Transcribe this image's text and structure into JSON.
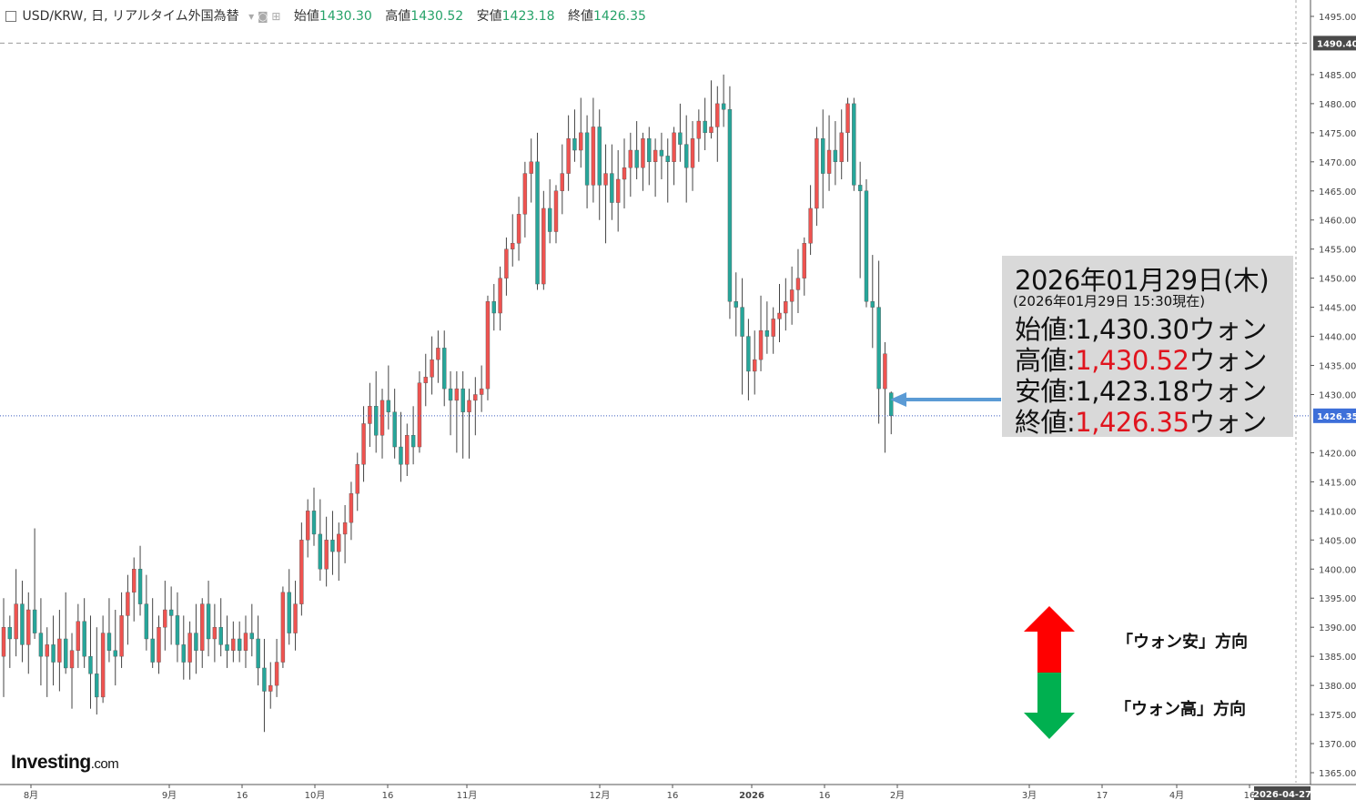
{
  "header": {
    "symbol": "USD/KRW, 日, リアルタイム外国為替",
    "open_label": "始値",
    "open": "1430.30",
    "high_label": "高値",
    "high": "1430.52",
    "low_label": "安値",
    "low": "1423.18",
    "close_label": "終値",
    "close": "1426.35"
  },
  "info_box": {
    "date": "2026年01月29日(木)",
    "as_of": "(2026年01月29日 15:30現在)",
    "open": "始値:1,430.30ウォン",
    "high_prefix": "高値:",
    "high_value": "1,430.52",
    "high_suffix": "ウォン",
    "low": "安値:1,423.18ウォン",
    "close_prefix": "終値:",
    "close_value": "1,426.35",
    "close_suffix": "ウォン"
  },
  "legend": {
    "up": "「ウォン安」方向",
    "down": "「ウォン高」方向",
    "up_color": "#ff0000",
    "down_color": "#00b050"
  },
  "logo": {
    "name": "Investing",
    "suffix": ".com"
  },
  "colors": {
    "up": "#ef5350",
    "down": "#26a69a",
    "wick": "#444444",
    "arrow": "#5b9bd5"
  },
  "chart_data": {
    "type": "candlestick",
    "title": "USD/KRW, 日, リアルタイム外国為替",
    "y_range": [
      1364,
      1498
    ],
    "y_ticks": [
      "1495.00",
      "1485.00",
      "1480.00",
      "1475.00",
      "1470.00",
      "1465.00",
      "1460.00",
      "1455.00",
      "1450.00",
      "1445.00",
      "1440.00",
      "1435.00",
      "1430.00",
      "1420.00",
      "1415.00",
      "1410.00",
      "1405.00",
      "1400.00",
      "1395.00",
      "1390.00",
      "1385.00",
      "1380.00",
      "1375.00",
      "1370.00",
      "1365.00"
    ],
    "price_markers": [
      {
        "label": "1490.40",
        "value": 1490.4,
        "style": "dashed"
      },
      {
        "label": "1426.35",
        "value": 1426.35,
        "style": "dotted"
      }
    ],
    "x_ticks": [
      "8月",
      "9月",
      "16",
      "10月",
      "16",
      "11月",
      "12月",
      "16",
      "2026",
      "16",
      "2月",
      "3月",
      "17",
      "4月",
      "16"
    ],
    "x_cursor_label": "2026-04-27",
    "candles": [
      {
        "o": 1385,
        "h": 1395,
        "l": 1378,
        "c": 1390
      },
      {
        "o": 1390,
        "h": 1392,
        "l": 1383,
        "c": 1388
      },
      {
        "o": 1388,
        "h": 1400,
        "l": 1385,
        "c": 1394
      },
      {
        "o": 1394,
        "h": 1398,
        "l": 1384,
        "c": 1387
      },
      {
        "o": 1387,
        "h": 1396,
        "l": 1382,
        "c": 1393
      },
      {
        "o": 1393,
        "h": 1407,
        "l": 1388,
        "c": 1389
      },
      {
        "o": 1389,
        "h": 1395,
        "l": 1380,
        "c": 1385
      },
      {
        "o": 1385,
        "h": 1390,
        "l": 1378,
        "c": 1387
      },
      {
        "o": 1387,
        "h": 1392,
        "l": 1380,
        "c": 1384
      },
      {
        "o": 1384,
        "h": 1393,
        "l": 1379,
        "c": 1388
      },
      {
        "o": 1388,
        "h": 1396,
        "l": 1382,
        "c": 1383
      },
      {
        "o": 1383,
        "h": 1389,
        "l": 1376,
        "c": 1386
      },
      {
        "o": 1386,
        "h": 1394,
        "l": 1383,
        "c": 1391
      },
      {
        "o": 1391,
        "h": 1395,
        "l": 1383,
        "c": 1385
      },
      {
        "o": 1385,
        "h": 1392,
        "l": 1376,
        "c": 1382
      },
      {
        "o": 1382,
        "h": 1390,
        "l": 1375,
        "c": 1378
      },
      {
        "o": 1378,
        "h": 1392,
        "l": 1377,
        "c": 1389
      },
      {
        "o": 1389,
        "h": 1395,
        "l": 1384,
        "c": 1386
      },
      {
        "o": 1386,
        "h": 1393,
        "l": 1380,
        "c": 1385
      },
      {
        "o": 1385,
        "h": 1396,
        "l": 1383,
        "c": 1392
      },
      {
        "o": 1392,
        "h": 1399,
        "l": 1387,
        "c": 1396
      },
      {
        "o": 1396,
        "h": 1402,
        "l": 1391,
        "c": 1400
      },
      {
        "o": 1400,
        "h": 1404,
        "l": 1392,
        "c": 1394
      },
      {
        "o": 1394,
        "h": 1399,
        "l": 1386,
        "c": 1388
      },
      {
        "o": 1388,
        "h": 1395,
        "l": 1383,
        "c": 1384
      },
      {
        "o": 1384,
        "h": 1392,
        "l": 1382,
        "c": 1390
      },
      {
        "o": 1390,
        "h": 1398,
        "l": 1386,
        "c": 1393
      },
      {
        "o": 1393,
        "h": 1397,
        "l": 1387,
        "c": 1392
      },
      {
        "o": 1392,
        "h": 1396,
        "l": 1384,
        "c": 1387
      },
      {
        "o": 1387,
        "h": 1392,
        "l": 1381,
        "c": 1384
      },
      {
        "o": 1384,
        "h": 1391,
        "l": 1381,
        "c": 1389
      },
      {
        "o": 1389,
        "h": 1394,
        "l": 1382,
        "c": 1386
      },
      {
        "o": 1386,
        "h": 1395,
        "l": 1383,
        "c": 1394
      },
      {
        "o": 1394,
        "h": 1398,
        "l": 1385,
        "c": 1388
      },
      {
        "o": 1388,
        "h": 1394,
        "l": 1384,
        "c": 1390
      },
      {
        "o": 1390,
        "h": 1395,
        "l": 1385,
        "c": 1387
      },
      {
        "o": 1387,
        "h": 1392,
        "l": 1383,
        "c": 1386
      },
      {
        "o": 1386,
        "h": 1391,
        "l": 1384,
        "c": 1388
      },
      {
        "o": 1388,
        "h": 1391,
        "l": 1384,
        "c": 1386
      },
      {
        "o": 1386,
        "h": 1392,
        "l": 1383,
        "c": 1389
      },
      {
        "o": 1389,
        "h": 1394,
        "l": 1385,
        "c": 1388
      },
      {
        "o": 1388,
        "h": 1392,
        "l": 1380,
        "c": 1383
      },
      {
        "o": 1383,
        "h": 1388,
        "l": 1372,
        "c": 1379
      },
      {
        "o": 1379,
        "h": 1384,
        "l": 1376,
        "c": 1380
      },
      {
        "o": 1380,
        "h": 1388,
        "l": 1378,
        "c": 1384
      },
      {
        "o": 1384,
        "h": 1397,
        "l": 1383,
        "c": 1396
      },
      {
        "o": 1396,
        "h": 1400,
        "l": 1387,
        "c": 1389
      },
      {
        "o": 1389,
        "h": 1398,
        "l": 1386,
        "c": 1394
      },
      {
        "o": 1394,
        "h": 1408,
        "l": 1392,
        "c": 1405
      },
      {
        "o": 1405,
        "h": 1412,
        "l": 1402,
        "c": 1410
      },
      {
        "o": 1410,
        "h": 1414,
        "l": 1404,
        "c": 1406
      },
      {
        "o": 1406,
        "h": 1412,
        "l": 1398,
        "c": 1400
      },
      {
        "o": 1400,
        "h": 1409,
        "l": 1397,
        "c": 1405
      },
      {
        "o": 1405,
        "h": 1410,
        "l": 1399,
        "c": 1403
      },
      {
        "o": 1403,
        "h": 1408,
        "l": 1398,
        "c": 1406
      },
      {
        "o": 1406,
        "h": 1411,
        "l": 1401,
        "c": 1408
      },
      {
        "o": 1408,
        "h": 1415,
        "l": 1405,
        "c": 1413
      },
      {
        "o": 1413,
        "h": 1420,
        "l": 1410,
        "c": 1418
      },
      {
        "o": 1418,
        "h": 1428,
        "l": 1415,
        "c": 1425
      },
      {
        "o": 1425,
        "h": 1432,
        "l": 1421,
        "c": 1428
      },
      {
        "o": 1428,
        "h": 1434,
        "l": 1420,
        "c": 1423
      },
      {
        "o": 1423,
        "h": 1431,
        "l": 1419,
        "c": 1429
      },
      {
        "o": 1429,
        "h": 1435,
        "l": 1424,
        "c": 1427
      },
      {
        "o": 1427,
        "h": 1431,
        "l": 1419,
        "c": 1421
      },
      {
        "o": 1421,
        "h": 1427,
        "l": 1415,
        "c": 1418
      },
      {
        "o": 1418,
        "h": 1425,
        "l": 1416,
        "c": 1423
      },
      {
        "o": 1423,
        "h": 1428,
        "l": 1418,
        "c": 1421
      },
      {
        "o": 1421,
        "h": 1434,
        "l": 1420,
        "c": 1432
      },
      {
        "o": 1432,
        "h": 1437,
        "l": 1428,
        "c": 1433
      },
      {
        "o": 1433,
        "h": 1440,
        "l": 1430,
        "c": 1436
      },
      {
        "o": 1436,
        "h": 1441,
        "l": 1432,
        "c": 1438
      },
      {
        "o": 1438,
        "h": 1441,
        "l": 1428,
        "c": 1431
      },
      {
        "o": 1431,
        "h": 1434,
        "l": 1423,
        "c": 1429
      },
      {
        "o": 1429,
        "h": 1434,
        "l": 1420,
        "c": 1431
      },
      {
        "o": 1431,
        "h": 1434,
        "l": 1419,
        "c": 1427
      },
      {
        "o": 1427,
        "h": 1431,
        "l": 1419,
        "c": 1429
      },
      {
        "o": 1429,
        "h": 1433,
        "l": 1423,
        "c": 1430
      },
      {
        "o": 1430,
        "h": 1435,
        "l": 1427,
        "c": 1431
      },
      {
        "o": 1431,
        "h": 1447,
        "l": 1429,
        "c": 1446
      },
      {
        "o": 1446,
        "h": 1449,
        "l": 1441,
        "c": 1444
      },
      {
        "o": 1444,
        "h": 1452,
        "l": 1441,
        "c": 1450
      },
      {
        "o": 1450,
        "h": 1457,
        "l": 1447,
        "c": 1455
      },
      {
        "o": 1455,
        "h": 1461,
        "l": 1452,
        "c": 1456
      },
      {
        "o": 1456,
        "h": 1464,
        "l": 1453,
        "c": 1461
      },
      {
        "o": 1461,
        "h": 1470,
        "l": 1457,
        "c": 1468
      },
      {
        "o": 1468,
        "h": 1474,
        "l": 1463,
        "c": 1470
      },
      {
        "o": 1470,
        "h": 1475,
        "l": 1448,
        "c": 1449
      },
      {
        "o": 1449,
        "h": 1465,
        "l": 1448,
        "c": 1462
      },
      {
        "o": 1462,
        "h": 1467,
        "l": 1456,
        "c": 1458
      },
      {
        "o": 1458,
        "h": 1466,
        "l": 1456,
        "c": 1465
      },
      {
        "o": 1465,
        "h": 1473,
        "l": 1461,
        "c": 1468
      },
      {
        "o": 1468,
        "h": 1478,
        "l": 1465,
        "c": 1474
      },
      {
        "o": 1474,
        "h": 1479,
        "l": 1470,
        "c": 1472
      },
      {
        "o": 1472,
        "h": 1481,
        "l": 1469,
        "c": 1475
      },
      {
        "o": 1475,
        "h": 1478,
        "l": 1462,
        "c": 1466
      },
      {
        "o": 1466,
        "h": 1481,
        "l": 1463,
        "c": 1476
      },
      {
        "o": 1476,
        "h": 1479,
        "l": 1460,
        "c": 1466
      },
      {
        "o": 1466,
        "h": 1473,
        "l": 1456,
        "c": 1468
      },
      {
        "o": 1468,
        "h": 1473,
        "l": 1460,
        "c": 1463
      },
      {
        "o": 1463,
        "h": 1472,
        "l": 1458,
        "c": 1467
      },
      {
        "o": 1467,
        "h": 1474,
        "l": 1462,
        "c": 1469
      },
      {
        "o": 1469,
        "h": 1475,
        "l": 1464,
        "c": 1472
      },
      {
        "o": 1472,
        "h": 1477,
        "l": 1467,
        "c": 1469
      },
      {
        "o": 1469,
        "h": 1475,
        "l": 1465,
        "c": 1474
      },
      {
        "o": 1474,
        "h": 1476,
        "l": 1466,
        "c": 1470
      },
      {
        "o": 1470,
        "h": 1474,
        "l": 1464,
        "c": 1472
      },
      {
        "o": 1472,
        "h": 1475,
        "l": 1467,
        "c": 1471
      },
      {
        "o": 1471,
        "h": 1474,
        "l": 1463,
        "c": 1470
      },
      {
        "o": 1470,
        "h": 1476,
        "l": 1466,
        "c": 1475
      },
      {
        "o": 1475,
        "h": 1480,
        "l": 1470,
        "c": 1473
      },
      {
        "o": 1473,
        "h": 1478,
        "l": 1463,
        "c": 1469
      },
      {
        "o": 1469,
        "h": 1477,
        "l": 1465,
        "c": 1474
      },
      {
        "o": 1474,
        "h": 1479,
        "l": 1470,
        "c": 1477
      },
      {
        "o": 1477,
        "h": 1481,
        "l": 1472,
        "c": 1475
      },
      {
        "o": 1475,
        "h": 1484,
        "l": 1474,
        "c": 1476
      },
      {
        "o": 1476,
        "h": 1483,
        "l": 1470,
        "c": 1480
      },
      {
        "o": 1480,
        "h": 1485,
        "l": 1476,
        "c": 1479
      },
      {
        "o": 1479,
        "h": 1483,
        "l": 1443,
        "c": 1446
      },
      {
        "o": 1446,
        "h": 1451,
        "l": 1440,
        "c": 1445
      },
      {
        "o": 1445,
        "h": 1450,
        "l": 1430,
        "c": 1440
      },
      {
        "o": 1440,
        "h": 1443,
        "l": 1429,
        "c": 1434
      },
      {
        "o": 1434,
        "h": 1441,
        "l": 1430,
        "c": 1436
      },
      {
        "o": 1436,
        "h": 1447,
        "l": 1434,
        "c": 1441
      },
      {
        "o": 1441,
        "h": 1446,
        "l": 1437,
        "c": 1440
      },
      {
        "o": 1440,
        "h": 1445,
        "l": 1437,
        "c": 1443
      },
      {
        "o": 1443,
        "h": 1449,
        "l": 1439,
        "c": 1444
      },
      {
        "o": 1444,
        "h": 1450,
        "l": 1441,
        "c": 1446
      },
      {
        "o": 1446,
        "h": 1452,
        "l": 1442,
        "c": 1448
      },
      {
        "o": 1448,
        "h": 1455,
        "l": 1444,
        "c": 1450
      },
      {
        "o": 1450,
        "h": 1457,
        "l": 1447,
        "c": 1456
      },
      {
        "o": 1456,
        "h": 1466,
        "l": 1454,
        "c": 1462
      },
      {
        "o": 1462,
        "h": 1476,
        "l": 1459,
        "c": 1474
      },
      {
        "o": 1474,
        "h": 1479,
        "l": 1462,
        "c": 1468
      },
      {
        "o": 1468,
        "h": 1478,
        "l": 1465,
        "c": 1472
      },
      {
        "o": 1472,
        "h": 1477,
        "l": 1466,
        "c": 1470
      },
      {
        "o": 1470,
        "h": 1479,
        "l": 1467,
        "c": 1475
      },
      {
        "o": 1475,
        "h": 1481,
        "l": 1470,
        "c": 1480
      },
      {
        "o": 1480,
        "h": 1481,
        "l": 1465,
        "c": 1466
      },
      {
        "o": 1466,
        "h": 1470,
        "l": 1450,
        "c": 1465
      },
      {
        "o": 1465,
        "h": 1467,
        "l": 1445,
        "c": 1446
      },
      {
        "o": 1446,
        "h": 1454,
        "l": 1438,
        "c": 1445
      },
      {
        "o": 1445,
        "h": 1453,
        "l": 1425,
        "c": 1431
      },
      {
        "o": 1431,
        "h": 1439,
        "l": 1420,
        "c": 1437
      },
      {
        "o": 1430.3,
        "h": 1430.52,
        "l": 1423.18,
        "c": 1426.35
      }
    ]
  }
}
